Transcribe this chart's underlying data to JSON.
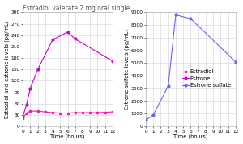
{
  "title": "Estradiol valerate 2 mg oral single",
  "left_ylabel": "Estradiol and estrone levels (pg/mL)",
  "right_ylabel": "Estrone sulfate levels (pg/mL)",
  "xlabel": "Time (hours)",
  "estradiol": {
    "x": [
      0,
      0.5,
      1,
      2,
      3,
      4,
      5,
      6,
      7,
      8,
      9,
      10,
      11,
      12
    ],
    "y": [
      22,
      35,
      40,
      40,
      38,
      36,
      35,
      35,
      36,
      36,
      36,
      36,
      37,
      38
    ],
    "color": "#ff1aaa",
    "marker": "s",
    "markersize": 2.0,
    "linewidth": 0.8,
    "label": "Estradiol"
  },
  "estrone": {
    "x": [
      0,
      0.5,
      1,
      2,
      4,
      6,
      7,
      12
    ],
    "y": [
      25,
      58,
      100,
      150,
      228,
      248,
      230,
      172
    ],
    "color": "#cc00cc",
    "marker": "o",
    "markersize": 2.0,
    "linewidth": 0.8,
    "label": "Estrone"
  },
  "estrone_sulfate": {
    "x": [
      0,
      1,
      3,
      4,
      6,
      12
    ],
    "y": [
      500,
      900,
      3200,
      8800,
      8500,
      5100
    ],
    "color": "#6666ee",
    "marker": "o",
    "markersize": 2.0,
    "linewidth": 0.8,
    "label": "Estrone sulfate"
  },
  "left_ylim": [
    0,
    300
  ],
  "left_yticks": [
    0,
    30,
    60,
    90,
    120,
    150,
    180,
    210,
    240,
    270,
    300
  ],
  "right_ylim": [
    0,
    9000
  ],
  "right_yticks": [
    0,
    1000,
    2000,
    3000,
    4000,
    5000,
    6000,
    7000,
    8000,
    9000
  ],
  "xlim": [
    0,
    12
  ],
  "xticks": [
    0,
    1,
    2,
    3,
    4,
    5,
    6,
    7,
    8,
    9,
    10,
    11,
    12
  ],
  "bg_color": "#ffffff",
  "grid_color": "#d0d0d8",
  "title_fontsize": 5.5,
  "axis_label_fontsize": 4.8,
  "tick_fontsize": 4.2,
  "legend_fontsize": 4.8,
  "title_color": "#555555"
}
